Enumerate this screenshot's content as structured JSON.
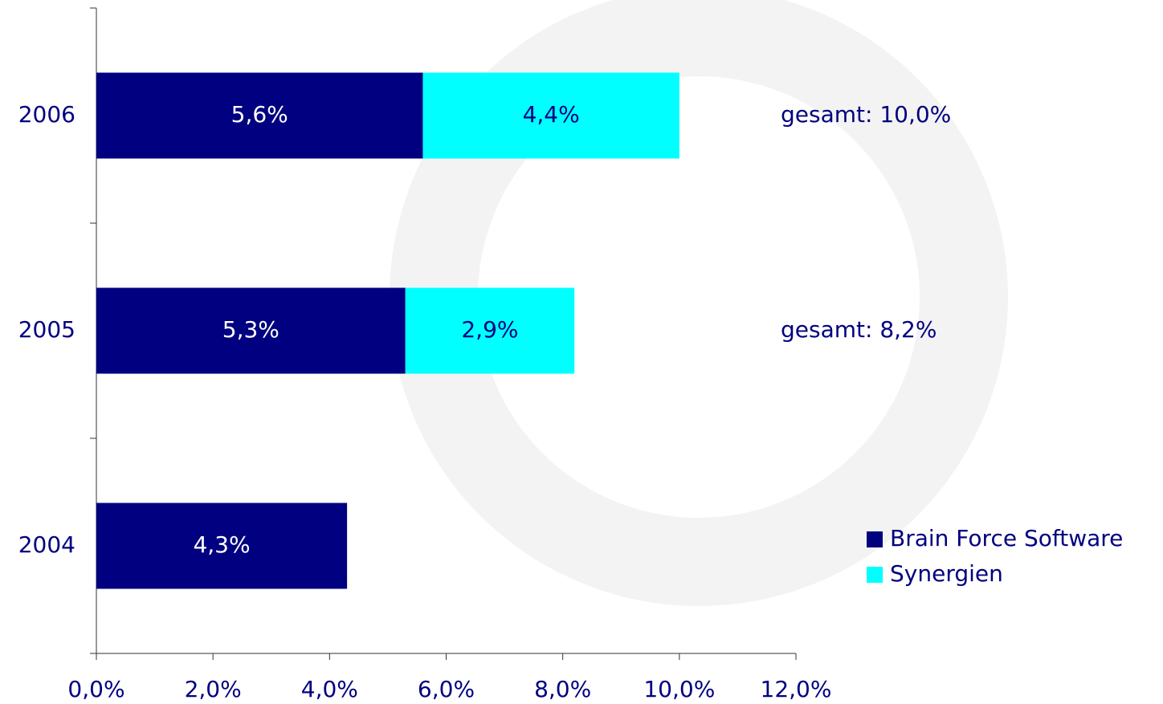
{
  "chart_data": {
    "type": "stacked-barh",
    "categories": [
      "2004",
      "2005",
      "2006"
    ],
    "series": [
      {
        "name": "Brain Force Software",
        "color": "#000080",
        "values": [
          4.3,
          5.3,
          5.6
        ],
        "value_labels": [
          "4,3%",
          "5,3%",
          "5,6%"
        ],
        "label_color": "#ffffff"
      },
      {
        "name": "Synergien",
        "color": "#00ffff",
        "values": [
          null,
          2.9,
          4.4
        ],
        "value_labels": [
          null,
          "2,9%",
          "4,4%"
        ],
        "label_color": "#000080"
      }
    ],
    "xlim": [
      0,
      12
    ],
    "xticks": [
      {
        "value": 0,
        "label": "0,0%"
      },
      {
        "value": 2,
        "label": "2,0%"
      },
      {
        "value": 4,
        "label": "4,0%"
      },
      {
        "value": 6,
        "label": "6,0%"
      },
      {
        "value": 8,
        "label": "8,0%"
      },
      {
        "value": 10,
        "label": "10,0%"
      },
      {
        "value": 12,
        "label": "12,0%"
      }
    ],
    "annotations": [
      {
        "text": "gesamt: 10,0%",
        "category": "2006"
      },
      {
        "text": "gesamt: 8,2%",
        "category": "2005"
      }
    ],
    "legend": "lower-right"
  }
}
